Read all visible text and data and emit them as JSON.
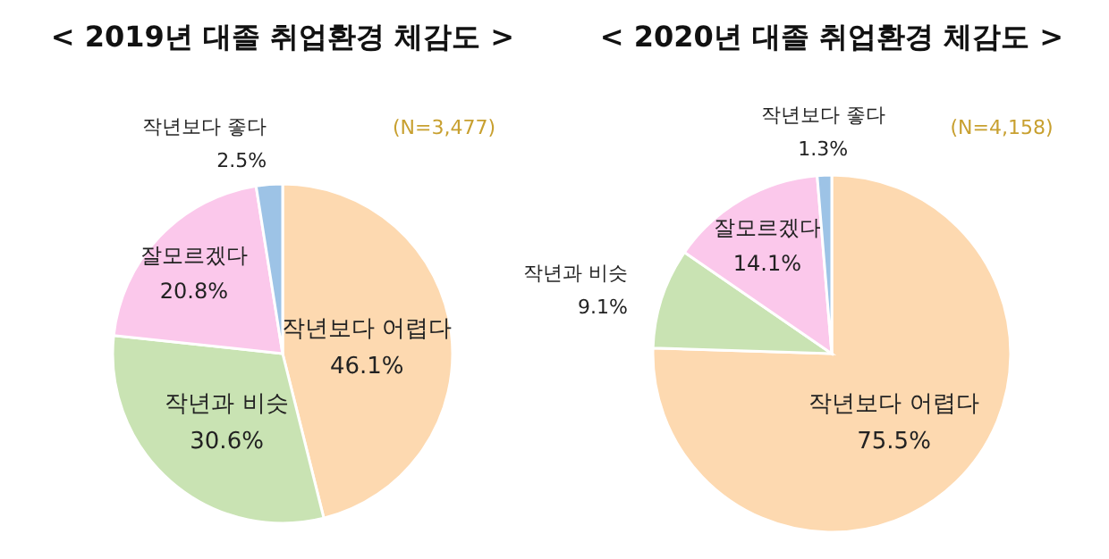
{
  "chart_data": [
    {
      "type": "pie",
      "title": "< 2019년 대졸 취업환경 체감도 >",
      "annotations": [
        "(N=3,477)"
      ],
      "categories": [
        "작년보다 어렵다",
        "작년과 비슷",
        "잘모르겠다",
        "작년보다 좋다"
      ],
      "values": [
        46.1,
        30.6,
        20.8,
        2.5
      ],
      "value_labels": [
        "46.1%",
        "30.6%",
        "20.8%",
        "2.5%"
      ],
      "colors": [
        "#fdd9b0",
        "#c9e3b3",
        "#fbc8eb",
        "#9dc3e6"
      ]
    },
    {
      "type": "pie",
      "title": "< 2020년 대졸 취업환경 체감도 >",
      "annotations": [
        "(N=4,158)"
      ],
      "categories": [
        "작년보다 어렵다",
        "작년과 비슷",
        "잘모르겠다",
        "작년보다 좋다"
      ],
      "values": [
        75.5,
        9.1,
        14.1,
        1.3
      ],
      "value_labels": [
        "75.5%",
        "9.1%",
        "14.1%",
        "1.3%"
      ],
      "colors": [
        "#fdd9b0",
        "#c9e3b3",
        "#fbc8eb",
        "#9dc3e6"
      ]
    }
  ]
}
